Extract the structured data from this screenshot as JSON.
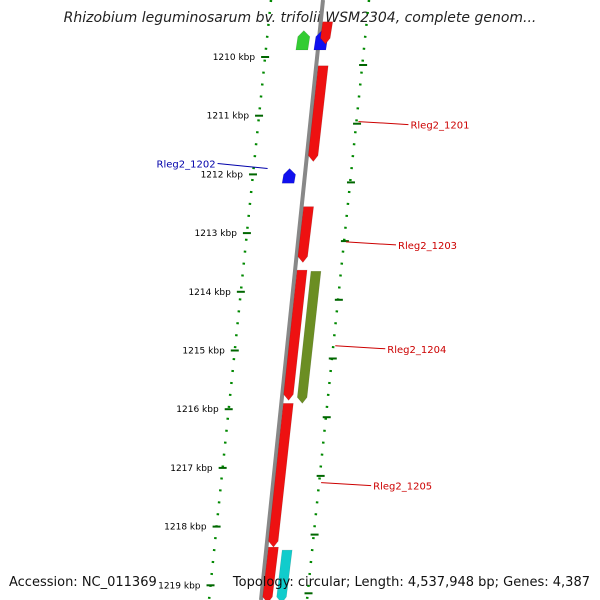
{
  "title": "Rhizobium leguminosarum bv. trifolii WSM2304, complete genom...",
  "accession": "Accession: NC_011369",
  "summary": "Topology: circular; Length: 4,537,948 bp; Genes: 4,387",
  "ticks": [
    {
      "label": "1210 kbp",
      "kbp": 1210
    },
    {
      "label": "1211 kbp",
      "kbp": 1211
    },
    {
      "label": "1212 kbp",
      "kbp": 1212
    },
    {
      "label": "1213 kbp",
      "kbp": 1213
    },
    {
      "label": "1214 kbp",
      "kbp": 1214
    },
    {
      "label": "1215 kbp",
      "kbp": 1215
    },
    {
      "label": "1216 kbp",
      "kbp": 1216
    },
    {
      "label": "1217 kbp",
      "kbp": 1217
    },
    {
      "label": "1218 kbp",
      "kbp": 1218
    },
    {
      "label": "1219 kbp",
      "kbp": 1219
    }
  ],
  "features": [
    {
      "id": "f-top-green",
      "strand": "reverse",
      "start_kbp": 1209.55,
      "end_kbp": 1209.88,
      "color": "#33cc33"
    },
    {
      "id": "f-top-blue",
      "strand": "reverse",
      "start_kbp": 1209.55,
      "end_kbp": 1209.88,
      "color": "#1010ee",
      "offset": 1
    },
    {
      "id": "f-top-red",
      "strand": "forward",
      "start_kbp": 1209.4,
      "end_kbp": 1209.78,
      "color": "#ee1111"
    },
    {
      "id": "Rleg2_1201",
      "strand": "forward",
      "start_kbp": 1210.15,
      "end_kbp": 1211.78,
      "color": "#ee1111"
    },
    {
      "id": "Rleg2_1202",
      "strand": "reverse",
      "start_kbp": 1211.9,
      "end_kbp": 1212.15,
      "color": "#1010ee"
    },
    {
      "id": "Rleg2_1203",
      "strand": "forward",
      "start_kbp": 1212.55,
      "end_kbp": 1213.5,
      "color": "#ee1111"
    },
    {
      "id": "Rleg2_1204a",
      "strand": "forward",
      "start_kbp": 1213.63,
      "end_kbp": 1215.85,
      "color": "#ee1111"
    },
    {
      "id": "Rleg2_1204",
      "strand": "forward2",
      "start_kbp": 1213.65,
      "end_kbp": 1215.9,
      "color": "#6b8e23"
    },
    {
      "id": "Rleg2_1205",
      "strand": "forward",
      "start_kbp": 1215.9,
      "end_kbp": 1218.35,
      "color": "#ee1111"
    },
    {
      "id": "f-bot-red",
      "strand": "forward",
      "start_kbp": 1218.35,
      "end_kbp": 1219.3,
      "color": "#ee1111"
    },
    {
      "id": "f-bot-cyan",
      "strand": "forward2",
      "start_kbp": 1218.4,
      "end_kbp": 1219.3,
      "color": "#11cccc"
    }
  ],
  "labels": [
    {
      "text": "Rleg2_1201",
      "kbp": 1211.1,
      "side": "right",
      "color": "#cc0000"
    },
    {
      "text": "Rleg2_1202",
      "kbp": 1211.9,
      "side": "left",
      "color": "#0000aa"
    },
    {
      "text": "Rleg2_1203",
      "kbp": 1213.15,
      "side": "right",
      "color": "#cc0000"
    },
    {
      "text": "Rleg2_1204",
      "kbp": 1214.92,
      "side": "right",
      "color": "#cc0000"
    },
    {
      "text": "Rleg2_1205",
      "kbp": 1217.25,
      "side": "right",
      "color": "#cc0000"
    }
  ],
  "colors": {
    "backbone": "#888888",
    "tick": "#006600",
    "dots": "#008800",
    "label_line_red": "#cc0000",
    "label_line_blue": "#0000aa"
  }
}
